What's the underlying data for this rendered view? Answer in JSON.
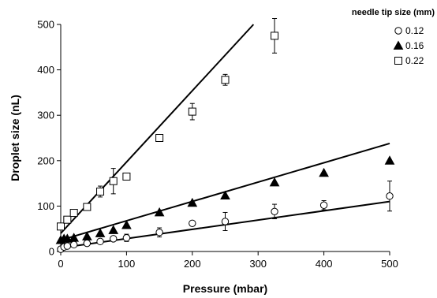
{
  "chart_data": {
    "type": "scatter",
    "xlabel": "Pressure (mbar)",
    "ylabel": "Droplet size (nL)",
    "xlim": [
      0,
      500
    ],
    "ylim": [
      0,
      500
    ],
    "xticks": [
      "0",
      "100",
      "200",
      "300",
      "400",
      "500"
    ],
    "yticks": [
      "0",
      "100",
      "200",
      "300",
      "400",
      "500"
    ],
    "grid": false,
    "legend": {
      "title": "needle tip size (mm)",
      "placement": "top-right outside"
    },
    "series": [
      {
        "name": "0.12",
        "marker": "open-circle",
        "x": [
          0,
          5,
          10,
          20,
          40,
          60,
          80,
          100,
          150,
          200,
          250,
          325,
          400,
          500
        ],
        "y": [
          5,
          10,
          12,
          15,
          18,
          22,
          28,
          30,
          42,
          62,
          66,
          88,
          102,
          122
        ],
        "err": [
          0,
          0,
          0,
          0,
          0,
          0,
          0,
          8,
          10,
          0,
          20,
          16,
          10,
          33
        ],
        "fit": [
          [
            0,
            8
          ],
          [
            500,
            110
          ]
        ]
      },
      {
        "name": "0.16",
        "marker": "filled-triangle",
        "x": [
          0,
          5,
          10,
          20,
          40,
          60,
          80,
          100,
          150,
          200,
          250,
          325,
          400,
          500
        ],
        "y": [
          25,
          28,
          28,
          30,
          33,
          40,
          47,
          58,
          86,
          107,
          123,
          152,
          173,
          200
        ],
        "err": [
          0,
          0,
          0,
          0,
          0,
          0,
          0,
          0,
          0,
          0,
          0,
          0,
          0,
          0
        ],
        "fit": [
          [
            0,
            25
          ],
          [
            500,
            238
          ]
        ]
      },
      {
        "name": "0.22",
        "marker": "open-square",
        "x": [
          0,
          10,
          20,
          40,
          60,
          80,
          100,
          150,
          200,
          250,
          325
        ],
        "y": [
          55,
          70,
          85,
          98,
          132,
          155,
          165,
          250,
          308,
          378,
          475
        ],
        "err": [
          0,
          0,
          0,
          0,
          12,
          28,
          0,
          0,
          18,
          12,
          38
        ],
        "fit": [
          [
            0,
            40
          ],
          [
            293,
            500
          ]
        ]
      }
    ]
  }
}
